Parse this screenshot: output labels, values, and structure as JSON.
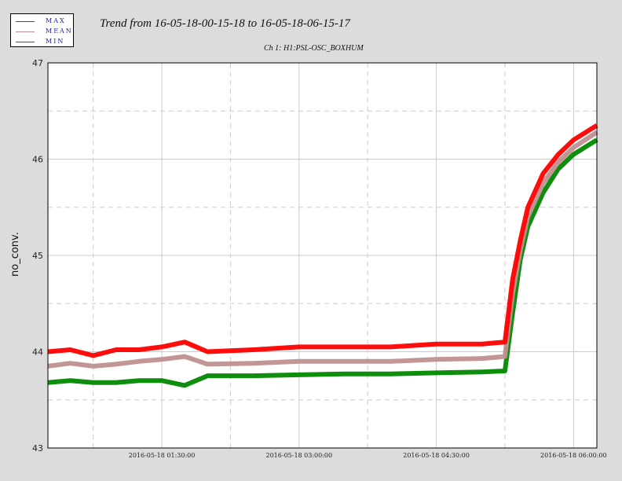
{
  "title": "Trend from 16-05-18-00-15-18 to 16-05-18-06-15-17",
  "subtitle": "Ch 1: H1:PSL-OSC_BOXHUM",
  "legend": [
    {
      "label": "MAX",
      "color": "#ff0000"
    },
    {
      "label": "MEAN",
      "color": "#c09090"
    },
    {
      "label": "MIN",
      "color": "#008800"
    }
  ],
  "chart_data": {
    "type": "line",
    "title": "Trend from 16-05-18-00-15-18 to 16-05-18-06-15-17",
    "subtitle": "Ch 1: H1:PSL-OSC_BOXHUM",
    "xlabel": "",
    "ylabel": "no_conv.",
    "xlim": [
      "2016-05-18 00:15:18",
      "2016-05-18 06:15:17"
    ],
    "ylim": [
      43,
      47
    ],
    "yticks": [
      43,
      44,
      45,
      46,
      47
    ],
    "xticks": [
      "2016-05-18 01:30:00",
      "2016-05-18 03:00:00",
      "2016-05-18 04:30:00",
      "2016-05-18 06:00:00"
    ],
    "grid": true,
    "legend_position": "top-left",
    "x": [
      "2016-05-18 00:15:18",
      "2016-05-18 00:30:00",
      "2016-05-18 00:45:00",
      "2016-05-18 01:00:00",
      "2016-05-18 01:15:00",
      "2016-05-18 01:30:00",
      "2016-05-18 01:45:00",
      "2016-05-18 02:00:00",
      "2016-05-18 02:30:00",
      "2016-05-18 03:00:00",
      "2016-05-18 03:30:00",
      "2016-05-18 04:00:00",
      "2016-05-18 04:30:00",
      "2016-05-18 05:00:00",
      "2016-05-18 05:15:00",
      "2016-05-18 05:20:00",
      "2016-05-18 05:25:00",
      "2016-05-18 05:30:00",
      "2016-05-18 05:40:00",
      "2016-05-18 05:50:00",
      "2016-05-18 06:00:00",
      "2016-05-18 06:15:17"
    ],
    "series": [
      {
        "name": "MAX",
        "color": "#ff0000",
        "values": [
          44.0,
          44.02,
          43.96,
          44.02,
          44.02,
          44.05,
          44.1,
          44.0,
          44.02,
          44.05,
          44.05,
          44.05,
          44.08,
          44.08,
          44.1,
          44.75,
          45.15,
          45.5,
          45.85,
          46.05,
          46.2,
          46.35
        ]
      },
      {
        "name": "MEAN",
        "color": "#c09090",
        "values": [
          43.85,
          43.88,
          43.85,
          43.87,
          43.9,
          43.92,
          43.95,
          43.87,
          43.88,
          43.9,
          43.9,
          43.9,
          43.92,
          43.93,
          43.95,
          44.6,
          45.05,
          45.4,
          45.75,
          45.97,
          46.12,
          46.28
        ]
      },
      {
        "name": "MIN",
        "color": "#008800",
        "values": [
          43.68,
          43.7,
          43.68,
          43.68,
          43.7,
          43.7,
          43.65,
          43.75,
          43.75,
          43.76,
          43.77,
          43.77,
          43.78,
          43.79,
          43.8,
          44.4,
          44.95,
          45.3,
          45.65,
          45.9,
          46.05,
          46.2
        ]
      }
    ]
  }
}
